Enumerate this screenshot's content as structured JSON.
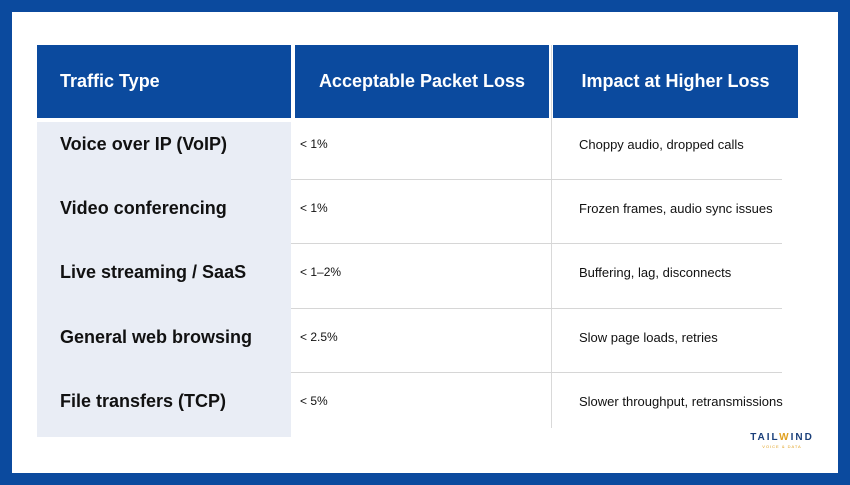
{
  "table": {
    "headers": [
      "Traffic Type",
      "Acceptable Packet Loss",
      "Impact at Higher Loss"
    ],
    "rows": [
      {
        "traffic_type": "Voice over IP (VoIP)",
        "loss": "< 1%",
        "impact": "Choppy audio, dropped calls"
      },
      {
        "traffic_type": "Video conferencing",
        "loss": "< 1%",
        "impact": "Frozen frames, audio sync issues"
      },
      {
        "traffic_type": "Live streaming / SaaS",
        "loss": "< 1–2%",
        "impact": "Buffering, lag, disconnects"
      },
      {
        "traffic_type": "General web browsing",
        "loss": "< 2.5%",
        "impact": "Slow page loads, retries"
      },
      {
        "traffic_type": "File transfers (TCP)",
        "loss": "< 5%",
        "impact": "Slower throughput, retransmissions"
      }
    ]
  },
  "logo": {
    "word_part1": "TAIL",
    "word_part2": "W",
    "word_part3": "IND",
    "tagline": "VOICE & DATA"
  },
  "colors": {
    "brand_blue": "#0b4a9e",
    "first_column_bg": "#e9edf5",
    "logo_accent": "#e0a020"
  }
}
